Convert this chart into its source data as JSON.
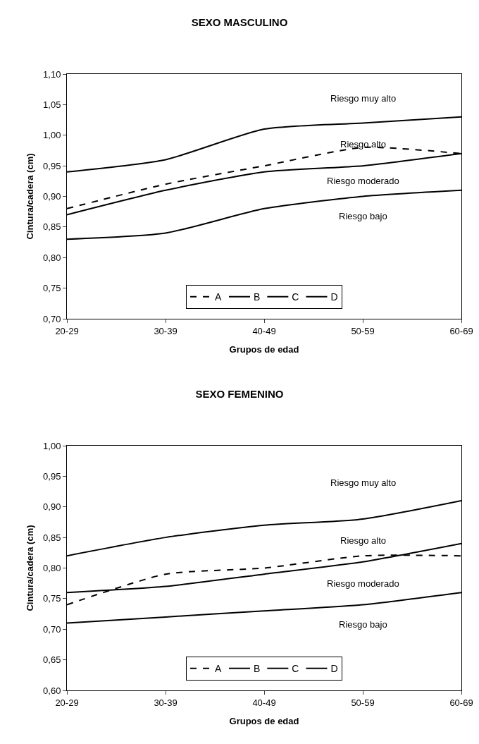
{
  "chart_data": [
    {
      "type": "line",
      "title": "SEXO MASCULINO",
      "xlabel": "Grupos de edad",
      "ylabel": "Cintura/cadera (cm)",
      "categories": [
        "20-29",
        "30-39",
        "40-49",
        "50-59",
        "60-69"
      ],
      "series": [
        {
          "name": "A",
          "color": "#000000",
          "line_style": "dashed",
          "values": [
            0.88,
            0.92,
            0.95,
            0.98,
            0.97
          ]
        },
        {
          "name": "B",
          "color": "#000000",
          "line_style": "solid",
          "values": [
            0.94,
            0.96,
            1.01,
            1.02,
            1.03
          ]
        },
        {
          "name": "C",
          "color": "#000000",
          "line_style": "solid",
          "values": [
            0.87,
            0.91,
            0.94,
            0.95,
            0.97
          ]
        },
        {
          "name": "D",
          "color": "#000000",
          "line_style": "solid",
          "values": [
            0.83,
            0.84,
            0.88,
            0.9,
            0.91
          ]
        }
      ],
      "ylim": [
        0.7,
        1.1
      ],
      "yticks": [
        {
          "value": 0.7,
          "label": "0,70"
        },
        {
          "value": 0.75,
          "label": "0,75"
        },
        {
          "value": 0.8,
          "label": "0,80"
        },
        {
          "value": 0.85,
          "label": "0,85"
        },
        {
          "value": 0.9,
          "label": "0,90"
        },
        {
          "value": 0.95,
          "label": "0,95"
        },
        {
          "value": 1.0,
          "label": "1,00"
        },
        {
          "value": 1.05,
          "label": "1,05"
        },
        {
          "value": 1.1,
          "label": "1,10"
        }
      ],
      "annotations": [
        "Riesgo muy alto",
        "Riesgo alto",
        "Riesgo moderado",
        "Riesgo bajo"
      ],
      "grid": false,
      "legend": "bottom"
    },
    {
      "type": "line",
      "title": "SEXO FEMENINO",
      "xlabel": "Grupos de edad",
      "ylabel": "Cintura/cadera (cm)",
      "categories": [
        "20-29",
        "30-39",
        "40-49",
        "50-59",
        "60-69"
      ],
      "series": [
        {
          "name": "A",
          "color": "#000000",
          "line_style": "dashed",
          "values": [
            0.74,
            0.79,
            0.8,
            0.82,
            0.82
          ]
        },
        {
          "name": "B",
          "color": "#000000",
          "line_style": "solid",
          "values": [
            0.82,
            0.85,
            0.87,
            0.88,
            0.91
          ]
        },
        {
          "name": "C",
          "color": "#000000",
          "line_style": "solid",
          "values": [
            0.76,
            0.77,
            0.79,
            0.81,
            0.84
          ]
        },
        {
          "name": "D",
          "color": "#000000",
          "line_style": "solid",
          "values": [
            0.71,
            0.72,
            0.73,
            0.74,
            0.76
          ]
        }
      ],
      "ylim": [
        0.6,
        1.0
      ],
      "yticks": [
        {
          "value": 0.6,
          "label": "0,60"
        },
        {
          "value": 0.65,
          "label": "0,65"
        },
        {
          "value": 0.7,
          "label": "0,70"
        },
        {
          "value": 0.75,
          "label": "0,75"
        },
        {
          "value": 0.8,
          "label": "0,80"
        },
        {
          "value": 0.85,
          "label": "0,85"
        },
        {
          "value": 0.9,
          "label": "0,90"
        },
        {
          "value": 0.95,
          "label": "0,95"
        },
        {
          "value": 1.0,
          "label": "1,00"
        }
      ],
      "annotations": [
        "Riesgo muy alto",
        "Riesgo alto",
        "Riesgo moderado",
        "Riesgo bajo"
      ],
      "grid": false,
      "legend": "bottom"
    }
  ]
}
